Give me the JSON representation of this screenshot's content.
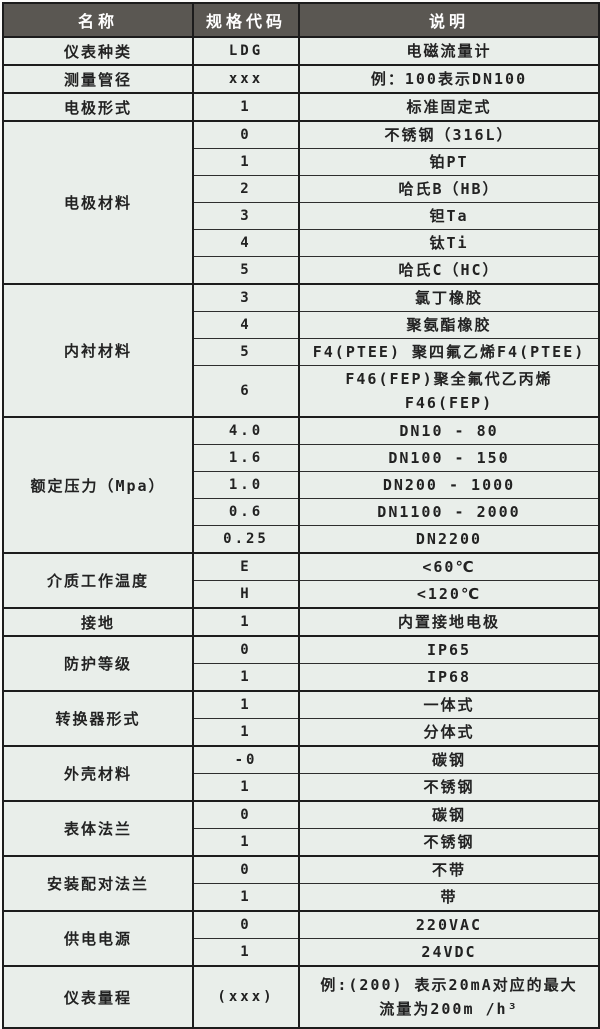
{
  "colors": {
    "header_bg": "#5a5752",
    "header_text": "#ffffff",
    "cell_bg": "#e9eeea",
    "border": "#1c1c1c",
    "text": "#222222"
  },
  "table": {
    "headers": [
      "名称",
      "规格代码",
      "说明"
    ],
    "groups": [
      {
        "name": "仪表种类",
        "rows": [
          {
            "code": "LDG",
            "desc": "电磁流量计"
          }
        ]
      },
      {
        "name": "测量管径",
        "rows": [
          {
            "code": "xxx",
            "desc": "例：100表示DN100"
          }
        ]
      },
      {
        "name": "电极形式",
        "rows": [
          {
            "code": "1",
            "desc": "标准固定式"
          }
        ]
      },
      {
        "name": "电极材料",
        "rows": [
          {
            "code": "0",
            "desc": "不锈钢（316L）"
          },
          {
            "code": "1",
            "desc": "铂PT"
          },
          {
            "code": "2",
            "desc": "哈氏B（HB）"
          },
          {
            "code": "3",
            "desc": "钽Ta"
          },
          {
            "code": "4",
            "desc": "钛Ti"
          },
          {
            "code": "5",
            "desc": "哈氏C（HC）"
          }
        ]
      },
      {
        "name": "内衬材料",
        "rows": [
          {
            "code": "3",
            "desc": "氯丁橡胶"
          },
          {
            "code": "4",
            "desc": "聚氨酯橡胶"
          },
          {
            "code": "5",
            "desc": "F4(PTEE) 聚四氟乙烯F4(PTEE)"
          },
          {
            "code": "6",
            "desc": "F46(FEP)聚全氟代乙丙烯F46(FEP)"
          }
        ]
      },
      {
        "name": "额定压力（Mpa）",
        "rows": [
          {
            "code": "4.0",
            "desc": "DN10 - 80"
          },
          {
            "code": "1.6",
            "desc": "DN100 - 150"
          },
          {
            "code": "1.0",
            "desc": "DN200 - 1000"
          },
          {
            "code": "0.6",
            "desc": "DN1100 - 2000"
          },
          {
            "code": "0.25",
            "desc": "DN2200"
          }
        ]
      },
      {
        "name": "介质工作温度",
        "rows": [
          {
            "code": "E",
            "desc": "<60℃"
          },
          {
            "code": "H",
            "desc": "<120℃"
          }
        ]
      },
      {
        "name": "接地",
        "rows": [
          {
            "code": "1",
            "desc": "内置接地电极"
          }
        ]
      },
      {
        "name": "防护等级",
        "rows": [
          {
            "code": "0",
            "desc": "IP65"
          },
          {
            "code": "1",
            "desc": "IP68"
          }
        ]
      },
      {
        "name": "转换器形式",
        "rows": [
          {
            "code": "1",
            "desc": "一体式"
          },
          {
            "code": "1",
            "desc": "分体式"
          }
        ]
      },
      {
        "name": "外壳材料",
        "rows": [
          {
            "code": "-0",
            "desc": "碳钢"
          },
          {
            "code": "1",
            "desc": "不锈钢"
          }
        ]
      },
      {
        "name": "表体法兰",
        "rows": [
          {
            "code": "0",
            "desc": "碳钢"
          },
          {
            "code": "1",
            "desc": "不锈钢"
          }
        ]
      },
      {
        "name": "安装配对法兰",
        "rows": [
          {
            "code": "0",
            "desc": "不带"
          },
          {
            "code": "1",
            "desc": "带"
          }
        ]
      },
      {
        "name": "供电电源",
        "rows": [
          {
            "code": "0",
            "desc": "220VAC"
          },
          {
            "code": "1",
            "desc": "24VDC"
          }
        ]
      },
      {
        "name": "仪表量程",
        "tall": true,
        "rows": [
          {
            "code": "(xxx)",
            "desc": "例:(200) 表示20mA对应的最大\n流量为200m /h³"
          }
        ]
      }
    ]
  }
}
